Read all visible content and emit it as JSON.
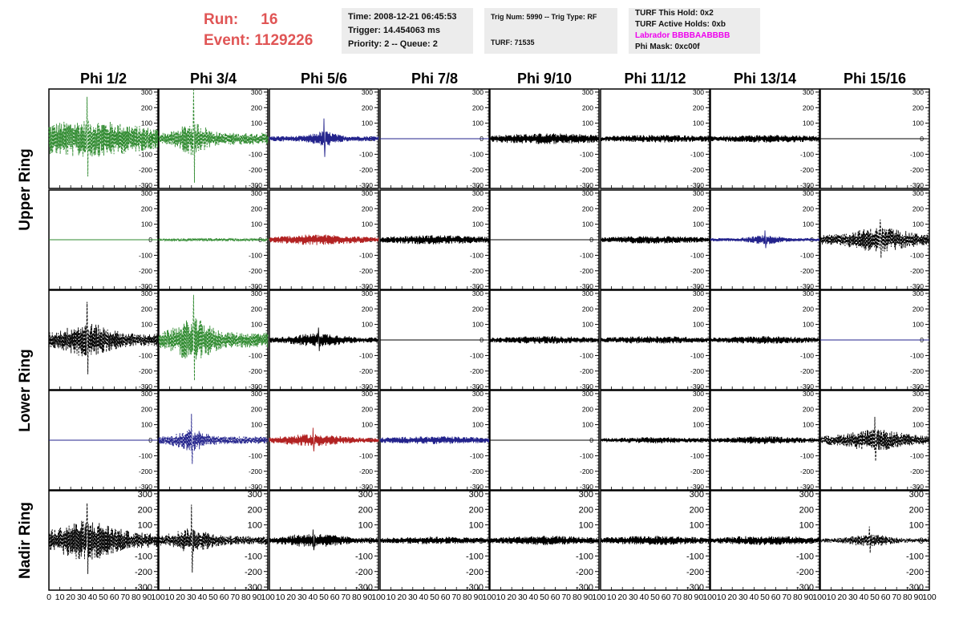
{
  "header": {
    "run_label": "Run:",
    "run_value": "16",
    "event_label": "Event:",
    "event_value": "1129226"
  },
  "info_boxes": {
    "box1": [
      "Time: 2008-12-21 06:45:53",
      "Trigger: 14.454063 ms",
      "Priority: 2 -- Queue: 2"
    ],
    "box2": [
      "Trig Num: 5990 -- Trig Type: RF",
      "",
      "TURF: 71535"
    ],
    "box3": [
      "TURF This Hold: 0x2",
      "TURF Active Holds: 0xb",
      "Labrador BBBBAABBBB",
      "Phi Mask: 0xc00f"
    ]
  },
  "colors": {
    "run_text": "#e05555",
    "labrador_text": "#ee00ee",
    "info_bg": "#ececec",
    "trace_green": "#2f8a2f",
    "trace_blue": "#23238c",
    "trace_red": "#b22222",
    "trace_black": "#000000"
  },
  "chart_data": {
    "type": "line",
    "columns": [
      "Phi 1/2",
      "Phi 3/4",
      "Phi 5/6",
      "Phi 7/8",
      "Phi 9/10",
      "Phi 11/12",
      "Phi 13/14",
      "Phi 15/16"
    ],
    "ring_labels": [
      "Upper Ring",
      "Lower Ring",
      "Nadir Ring"
    ],
    "ylim": [
      -320,
      320
    ],
    "xlim": [
      0,
      100
    ],
    "y_ticks": [
      300,
      200,
      100,
      0,
      -100,
      -200,
      -300
    ],
    "x_ticks": [
      0,
      10,
      20,
      30,
      40,
      50,
      60,
      70,
      80,
      90,
      100
    ],
    "rows": [
      [
        {
          "color": "green",
          "dashed": true,
          "amp": 120,
          "center": 35,
          "width": 60,
          "spike": 270
        },
        {
          "color": "green",
          "dashed": true,
          "amp": 110,
          "center": 32,
          "width": 14,
          "spike": 315
        },
        {
          "color": "blue",
          "dashed": false,
          "amp": 50,
          "center": 50,
          "width": 12,
          "spike": 130
        },
        {
          "color": "blue",
          "dashed": false,
          "amp": 0
        },
        {
          "color": "black",
          "dashed": false,
          "amp": 35,
          "center": 55,
          "width": 60
        },
        {
          "color": "black",
          "dashed": false,
          "amp": 25,
          "center": 55,
          "width": 60
        },
        {
          "color": "black",
          "dashed": false,
          "amp": 25,
          "center": 55,
          "width": 60
        },
        {
          "color": "black",
          "dashed": false,
          "amp": 0
        }
      ],
      [
        {
          "color": "green",
          "dashed": false,
          "amp": 0
        },
        {
          "color": "green",
          "dashed": true,
          "amp": 10,
          "center": 50,
          "width": 60
        },
        {
          "color": "red",
          "dashed": false,
          "amp": 35,
          "center": 45,
          "width": 40
        },
        {
          "color": "black",
          "dashed": false,
          "amp": 30,
          "center": 50,
          "width": 50
        },
        {
          "color": "black",
          "dashed": false,
          "amp": 0
        },
        {
          "color": "black",
          "dashed": false,
          "amp": 25,
          "center": 50,
          "width": 50
        },
        {
          "color": "blue",
          "dashed": false,
          "amp": 30,
          "center": 50,
          "width": 15,
          "spike": 60
        },
        {
          "color": "black",
          "dashed": true,
          "amp": 80,
          "center": 55,
          "width": 30,
          "spike": 130
        }
      ],
      [
        {
          "color": "black",
          "dashed": true,
          "amp": 110,
          "center": 35,
          "width": 25,
          "spike": 245
        },
        {
          "color": "green",
          "dashed": true,
          "amp": 140,
          "center": 32,
          "width": 18,
          "spike": 290
        },
        {
          "color": "black",
          "dashed": false,
          "amp": 45,
          "center": 45,
          "width": 25,
          "spike": 80
        },
        {
          "color": "black",
          "dashed": false,
          "amp": 0
        },
        {
          "color": "black",
          "dashed": false,
          "amp": 25,
          "center": 50,
          "width": 50
        },
        {
          "color": "black",
          "dashed": false,
          "amp": 25,
          "center": 50,
          "width": 50
        },
        {
          "color": "black",
          "dashed": false,
          "amp": 25,
          "center": 50,
          "width": 50
        },
        {
          "color": "blue",
          "dashed": false,
          "amp": 0
        }
      ],
      [
        {
          "color": "blue",
          "dashed": false,
          "amp": 0
        },
        {
          "color": "blue",
          "dashed": true,
          "amp": 70,
          "center": 30,
          "width": 15,
          "spike": 170
        },
        {
          "color": "red",
          "dashed": false,
          "amp": 40,
          "center": 40,
          "width": 30,
          "spike": 80
        },
        {
          "color": "blue",
          "dashed": false,
          "amp": 25,
          "center": 50,
          "width": 60
        },
        {
          "color": "black",
          "dashed": false,
          "amp": 0
        },
        {
          "color": "black",
          "dashed": false,
          "amp": 20,
          "center": 50,
          "width": 50
        },
        {
          "color": "black",
          "dashed": false,
          "amp": 25,
          "center": 50,
          "width": 40
        },
        {
          "color": "black",
          "dashed": true,
          "amp": 70,
          "center": 50,
          "width": 30,
          "spike": 150
        }
      ],
      [
        {
          "color": "black",
          "dashed": true,
          "amp": 130,
          "center": 35,
          "width": 30,
          "spike": 240
        },
        {
          "color": "black",
          "dashed": true,
          "amp": 80,
          "center": 30,
          "width": 20,
          "spike": 230
        },
        {
          "color": "black",
          "dashed": false,
          "amp": 45,
          "center": 40,
          "width": 30,
          "spike": 70
        },
        {
          "color": "black",
          "dashed": false,
          "amp": 25,
          "center": 50,
          "width": 50
        },
        {
          "color": "black",
          "dashed": false,
          "amp": 30,
          "center": 50,
          "width": 50
        },
        {
          "color": "black",
          "dashed": false,
          "amp": 30,
          "center": 50,
          "width": 50
        },
        {
          "color": "black",
          "dashed": false,
          "amp": 30,
          "center": 50,
          "width": 50
        },
        {
          "color": "black",
          "dashed": true,
          "amp": 40,
          "center": 45,
          "width": 20,
          "spike": 90
        }
      ]
    ]
  }
}
